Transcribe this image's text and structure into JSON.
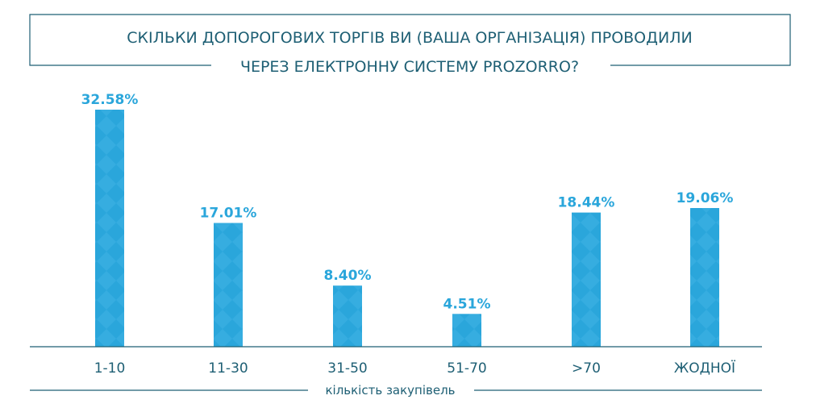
{
  "chart_data": {
    "type": "bar",
    "title_line1": "СКІЛЬКИ ДОПОРОГОВИХ ТОРГІВ ВИ (ВАША ОРГАНІЗАЦІЯ) ПРОВОДИЛИ",
    "title_line2": "ЧЕРЕЗ ЕЛЕКТРОННУ СИСТЕМУ PROZORRO?",
    "xlabel": "кількість закупівель",
    "ylabel": "",
    "categories": [
      "1-10",
      "11-30",
      "31-50",
      "51-70",
      ">70",
      "ЖОДНОЇ"
    ],
    "values": [
      32.58,
      17.01,
      8.4,
      4.51,
      18.44,
      19.06
    ],
    "value_labels": [
      "32.58%",
      "17.01%",
      "8.40%",
      "4.51%",
      "18.44%",
      "19.06%"
    ],
    "ylim": [
      0,
      32.58
    ],
    "grid": false,
    "bar_color": "#2aa6db",
    "text_color": "#1e5f74",
    "axis_color": "#1e5f74"
  }
}
